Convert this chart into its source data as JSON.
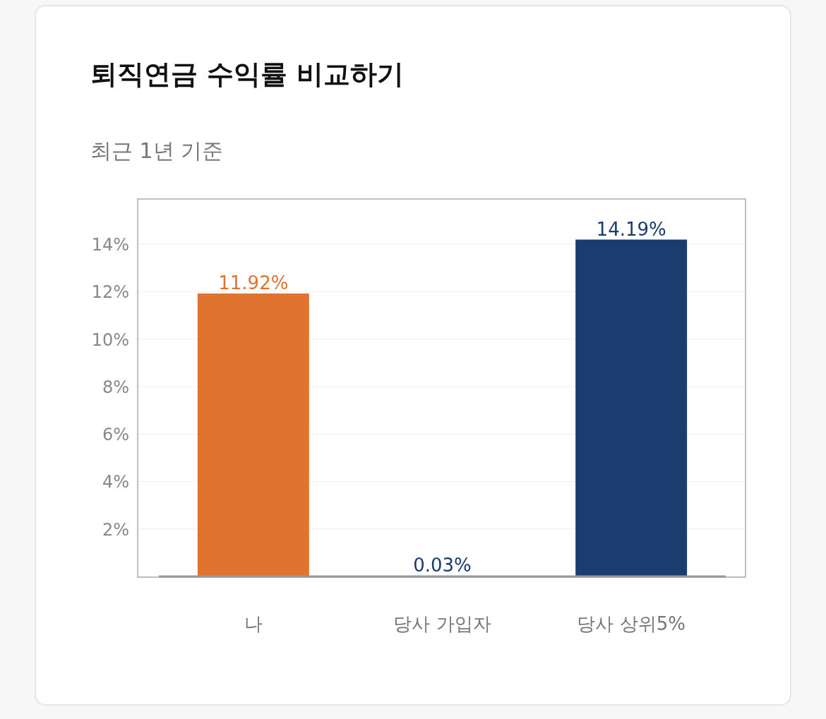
{
  "chart_data": {
    "type": "bar",
    "title": "퇴직연금 수익률 비교하기",
    "subtitle": "최근 1년 기준",
    "categories": [
      "나",
      "당사 가입자",
      "당사 상위5%"
    ],
    "values": [
      11.92,
      0.03,
      14.19
    ],
    "colors": [
      "#e07330",
      "#1a3c6e",
      "#1a3c6e"
    ],
    "value_labels": [
      "11.92%",
      "0.03%",
      "14.19%"
    ],
    "ylim": [
      0,
      15.9
    ],
    "yticks": [
      {
        "value": 0,
        "label": null
      },
      {
        "value": 2,
        "label": "2%"
      },
      {
        "value": 4,
        "label": "4%"
      },
      {
        "value": 6,
        "label": "6%"
      },
      {
        "value": 8,
        "label": "8%"
      },
      {
        "value": 10,
        "label": "10%"
      },
      {
        "value": 12,
        "label": "12%"
      },
      {
        "value": 14,
        "label": "14%"
      }
    ],
    "grid": "y"
  }
}
